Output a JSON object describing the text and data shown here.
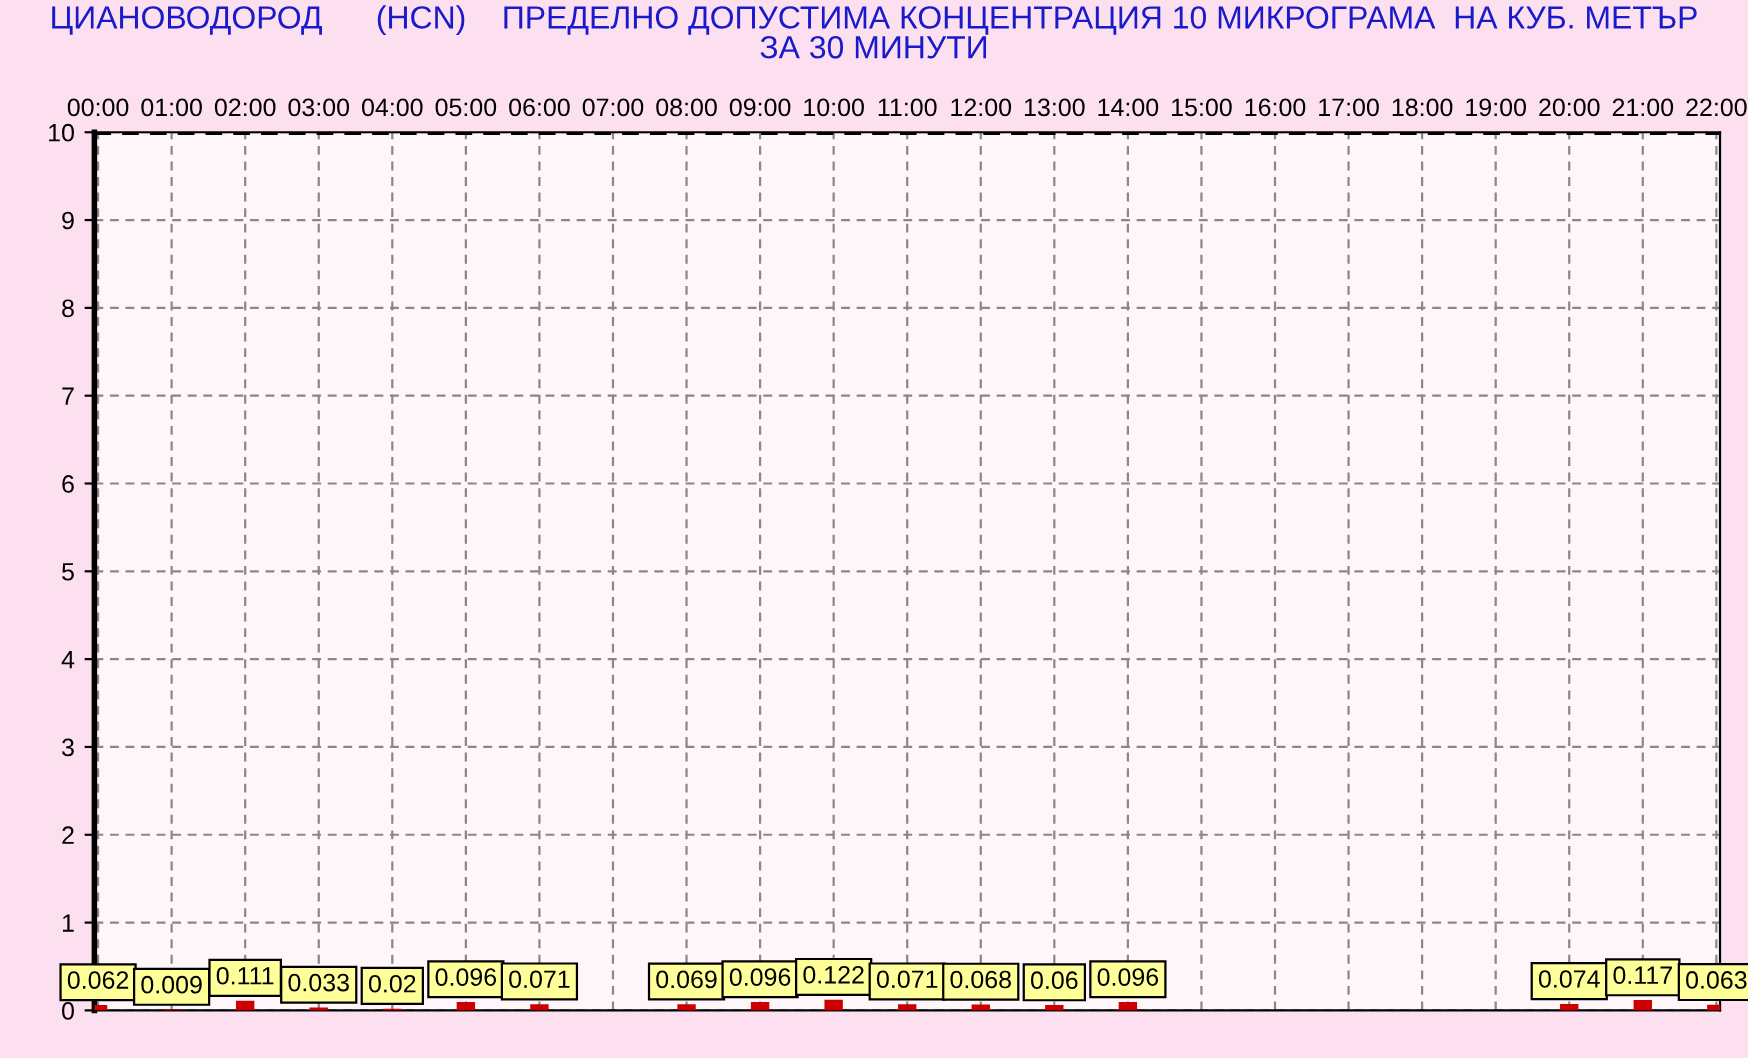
{
  "chart_data": {
    "type": "bar",
    "title": "ЦИАНОВОДОРОД      (HCN)    ПРЕДЕЛНО ДОПУСТИМА КОНЦЕНТРАЦИЯ 10 МИКРОГРАМА  НА КУБ. МЕТЪР\nЗА 30 МИНУТИ",
    "categories": [
      "00:00",
      "01:00",
      "02:00",
      "03:00",
      "04:00",
      "05:00",
      "06:00",
      "07:00",
      "08:00",
      "09:00",
      "10:00",
      "11:00",
      "12:00",
      "13:00",
      "14:00",
      "15:00",
      "16:00",
      "17:00",
      "18:00",
      "19:00",
      "20:00",
      "21:00",
      "22:00"
    ],
    "values": [
      0.062,
      0.009,
      0.111,
      0.033,
      0.02,
      0.096,
      0.071,
      null,
      0.069,
      0.096,
      0.122,
      0.071,
      0.068,
      0.06,
      0.096,
      null,
      null,
      null,
      null,
      null,
      0.074,
      0.117,
      0.063
    ],
    "color": "#cc0000",
    "data_labels": true,
    "ylim": [
      0,
      10
    ],
    "yticks": [
      0,
      1,
      2,
      3,
      4,
      5,
      6,
      7,
      8,
      9,
      10
    ],
    "grid": true,
    "ref_lines": [
      {
        "axis": "y",
        "value": 10,
        "color": "#000000",
        "line_style": "dashed"
      }
    ]
  }
}
